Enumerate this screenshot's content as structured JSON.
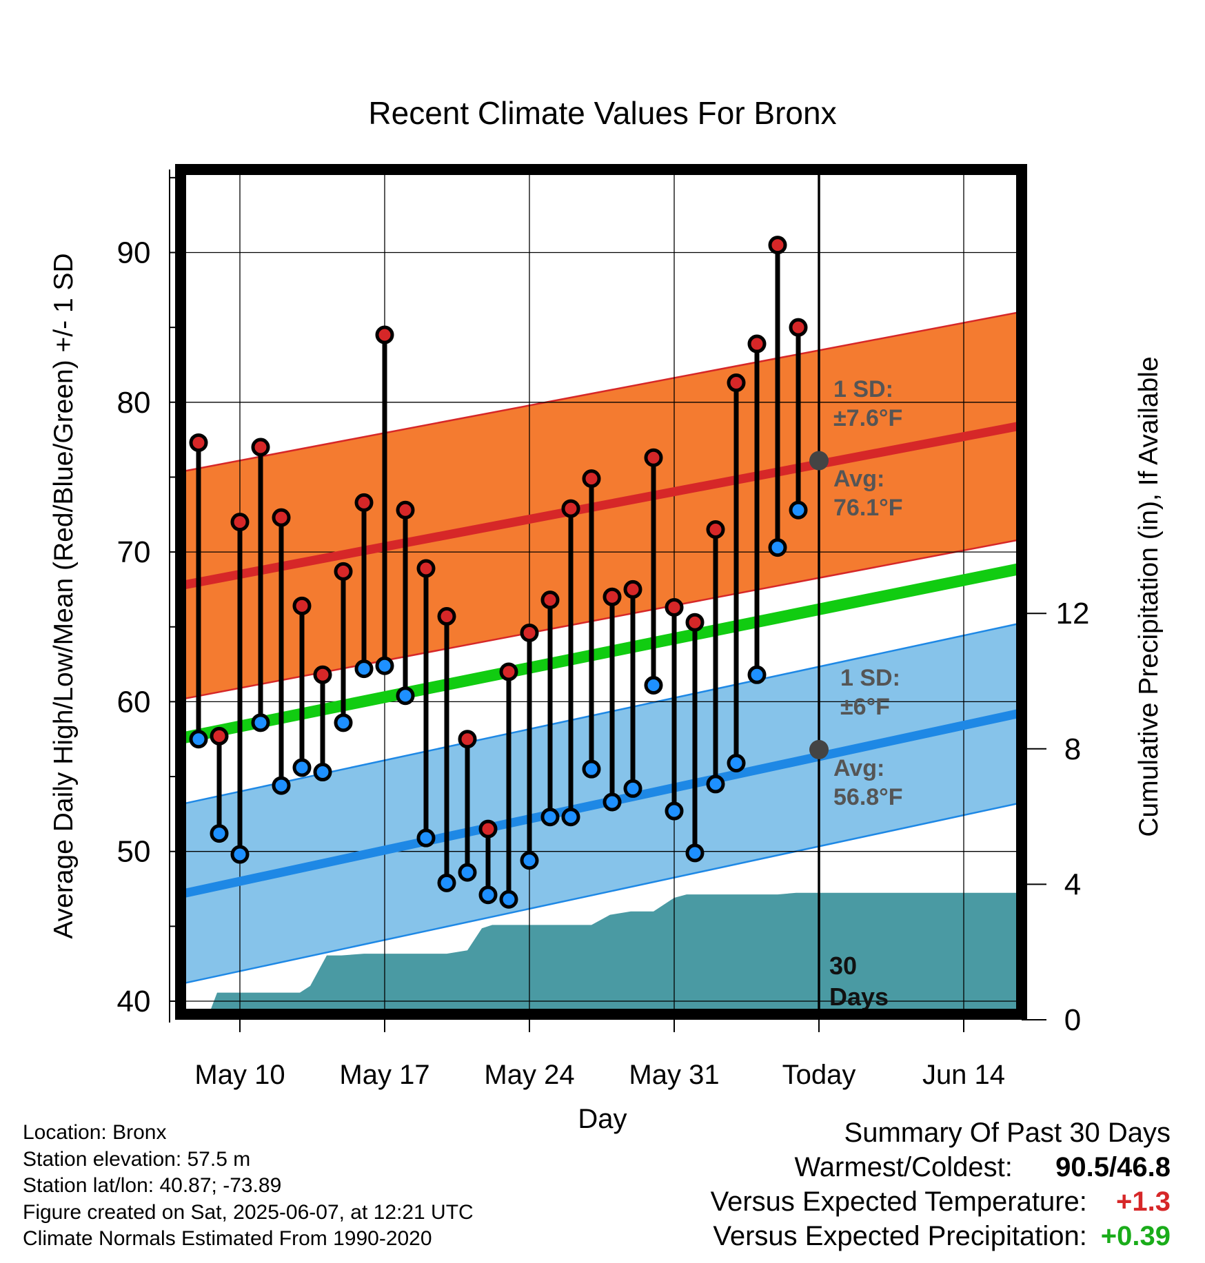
{
  "colors": {
    "high_band": "#f47b30",
    "high_band_edge": "#d62728",
    "high_avg_line": "#d62728",
    "low_band": "#86c3ea",
    "low_band_edge": "#1e88e5",
    "low_avg_line": "#1e88e5",
    "mean_line": "#11cc11",
    "precip_fill": "#4a9aa3",
    "high_marker": "#d62728",
    "low_marker": "#1e90ff",
    "avg_marker": "#444444",
    "annotation": "#555555"
  },
  "chart_data": {
    "type": "line",
    "title": "Recent Climate Values For Bronx",
    "xlabel": "Day",
    "ylabel": "Average Daily High/Low/Mean (Red/Blue/Green) +/- 1 SD",
    "y2label": "Cumulative Precipitation (in), If Available",
    "xlim": [
      -2.2,
      40.3
    ],
    "ylim": [
      39,
      96
    ],
    "y2lim": [
      0,
      24
    ],
    "x_ticks": [
      {
        "x": 0,
        "label": "May 10"
      },
      {
        "x": 7,
        "label": "May 17"
      },
      {
        "x": 14,
        "label": "May 24"
      },
      {
        "x": 21,
        "label": "May 31"
      },
      {
        "x": 28,
        "label": "Today"
      },
      {
        "x": 35,
        "label": "Jun 14"
      }
    ],
    "y_ticks": [
      40,
      50,
      60,
      70,
      80,
      90
    ],
    "y2_ticks": [
      0,
      4,
      8,
      12
    ],
    "grid": true,
    "today_x": 28,
    "today_label_number": "30",
    "today_label_text": "Days",
    "normal_high": {
      "x": [
        -2.7,
        40.3
      ],
      "avg": [
        67.8,
        79.1
      ],
      "sd": 7.6
    },
    "normal_low": {
      "x": [
        -2.7,
        40.3
      ],
      "avg": [
        47.2,
        60.0
      ],
      "sd": 6
    },
    "normal_mean": {
      "x": [
        -2.7,
        40.3
      ],
      "values": [
        57.6,
        69.6
      ]
    },
    "high_annotation": {
      "sd_label": "1 SD:",
      "sd_value": "±7.6°F",
      "avg_label": "Avg:",
      "avg_value": "76.1°F",
      "avg_y": 76.1
    },
    "low_annotation": {
      "sd_label": "1 SD:",
      "sd_value": "±6°F",
      "avg_label": "Avg:",
      "avg_value": "56.8°F",
      "avg_y": 56.8
    },
    "series": [
      {
        "name": "High",
        "x": [
          -2,
          -1,
          0,
          1,
          2,
          3,
          4,
          5,
          6,
          7,
          8,
          9,
          10,
          11,
          12,
          13,
          14,
          15,
          16,
          17,
          18,
          19,
          20,
          21,
          22,
          23,
          24,
          25,
          26,
          27
        ],
        "values": [
          77.3,
          57.7,
          72.0,
          77.0,
          72.3,
          66.4,
          61.8,
          68.7,
          73.3,
          84.5,
          72.8,
          68.9,
          65.7,
          57.5,
          51.5,
          62.0,
          64.6,
          66.8,
          72.9,
          74.9,
          67.0,
          67.5,
          76.3,
          66.3,
          65.3,
          71.5,
          81.3,
          83.9,
          90.5,
          85.0
        ]
      },
      {
        "name": "Low",
        "x": [
          -2,
          -1,
          0,
          1,
          2,
          3,
          4,
          5,
          6,
          7,
          8,
          9,
          10,
          11,
          12,
          13,
          14,
          15,
          16,
          17,
          18,
          19,
          20,
          21,
          22,
          23,
          24,
          25,
          26,
          27
        ],
        "values": [
          57.5,
          51.2,
          49.8,
          58.6,
          54.4,
          55.6,
          55.3,
          58.6,
          62.2,
          62.4,
          60.4,
          50.9,
          47.9,
          48.6,
          47.1,
          46.8,
          49.4,
          52.3,
          52.3,
          55.5,
          53.3,
          54.2,
          61.1,
          52.7,
          49.9,
          54.5,
          55.9,
          61.8,
          70.3,
          72.8
        ]
      }
    ],
    "precip": {
      "x": [
        -2.7,
        -1.6,
        -1.1,
        0.3,
        1,
        2,
        2.9,
        3.4,
        4.2,
        4.9,
        6,
        7,
        8,
        9,
        10,
        11,
        11.7,
        12.2,
        13,
        14,
        15,
        16,
        17,
        17.9,
        18.9,
        20,
        21,
        21.6,
        22,
        23,
        24,
        25,
        26,
        26.9,
        28,
        40.3
      ],
      "values": [
        0,
        0,
        0.8,
        0.8,
        0.8,
        0.8,
        0.8,
        1.0,
        1.9,
        1.9,
        1.95,
        1.95,
        1.95,
        1.95,
        1.95,
        2.05,
        2.7,
        2.8,
        2.8,
        2.8,
        2.8,
        2.8,
        2.8,
        3.1,
        3.2,
        3.2,
        3.6,
        3.7,
        3.7,
        3.7,
        3.7,
        3.7,
        3.7,
        3.75,
        3.75,
        3.75
      ]
    }
  },
  "footer": {
    "location": "Location: Bronx",
    "elevation": "Station elevation: 57.5 m",
    "latlon": "Station lat/lon: 40.87; -73.89",
    "created": "Figure created on Sat, 2025-06-07, at 12:21 UTC",
    "normals": "Climate Normals Estimated From 1990-2020"
  },
  "summary": {
    "title": "Summary Of Past 30 Days",
    "warmest_coldest_label": "Warmest/Coldest:",
    "warmest": "90.5",
    "coldest": "46.8",
    "temp_label": "Versus Expected Temperature:",
    "temp_value": "+1.3",
    "precip_label": "Versus Expected Precipitation:",
    "precip_value": "+0.39"
  }
}
